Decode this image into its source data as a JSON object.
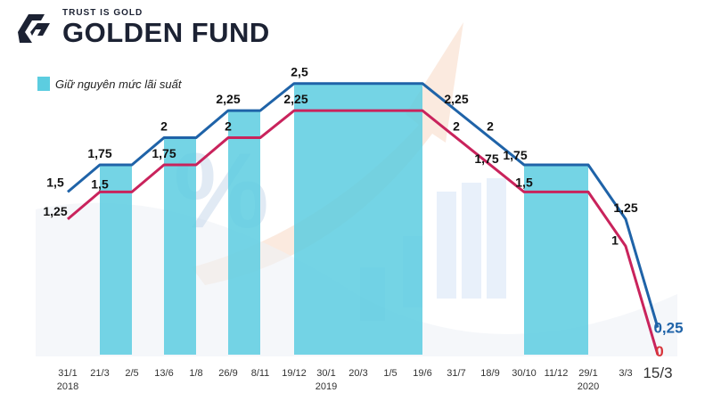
{
  "brand": {
    "tagline": "TRUST IS GOLD",
    "name": "GOLDEN FUND"
  },
  "legend": {
    "hold_label": "Giữ nguyên mức lãi suất",
    "hold_color": "#5ccde0"
  },
  "colors": {
    "upper_line": "#1f63a8",
    "lower_line": "#c9235c",
    "zero_label": "#d8343a",
    "last_upper_label": "#1f63a8"
  },
  "chart_data": {
    "type": "line",
    "x": [
      "31/1",
      "21/3",
      "2/5",
      "13/6",
      "1/8",
      "26/9",
      "8/11",
      "19/12",
      "30/1",
      "20/3",
      "1/5",
      "19/6",
      "31/7",
      "18/9",
      "30/10",
      "11/12",
      "29/1",
      "3/3",
      "15/3"
    ],
    "year_labels": [
      {
        "at": "31/1",
        "text": "2018"
      },
      {
        "at": "30/1",
        "text": "2019"
      },
      {
        "at": "29/1",
        "text": "2020"
      }
    ],
    "series": [
      {
        "values": [
          1.5,
          1.75,
          1.75,
          2,
          2,
          2.25,
          2.25,
          2.5,
          2.5,
          2.5,
          2.5,
          2.5,
          2.25,
          2,
          1.75,
          1.75,
          1.75,
          1.25,
          0.25
        ],
        "labels": [
          "1,5",
          "1,75",
          "",
          "2",
          "",
          "2,25",
          "",
          "2,5",
          "",
          "",
          "",
          "",
          "2,25",
          "2",
          "1,75",
          "",
          "",
          "1,25",
          "0,25"
        ]
      },
      {
        "values": [
          1.25,
          1.5,
          1.5,
          1.75,
          1.75,
          2,
          2,
          2.25,
          2.25,
          2.25,
          2.25,
          2.25,
          2,
          1.75,
          1.5,
          1.5,
          1.5,
          1,
          0
        ],
        "labels": [
          "1,25",
          "1,5",
          "",
          "1,75",
          "",
          "2",
          "",
          "2,25",
          "",
          "",
          "",
          "",
          "2",
          "1,75",
          "1,5",
          "",
          "",
          "1",
          "0"
        ]
      }
    ],
    "hold_periods": [
      [
        "21/3",
        "2/5"
      ],
      [
        "13/6",
        "1/8"
      ],
      [
        "26/9",
        "8/11"
      ],
      [
        "19/12",
        "19/6"
      ],
      [
        "30/10",
        "29/1"
      ]
    ],
    "ylim": [
      0,
      2.9
    ],
    "grid": false
  }
}
